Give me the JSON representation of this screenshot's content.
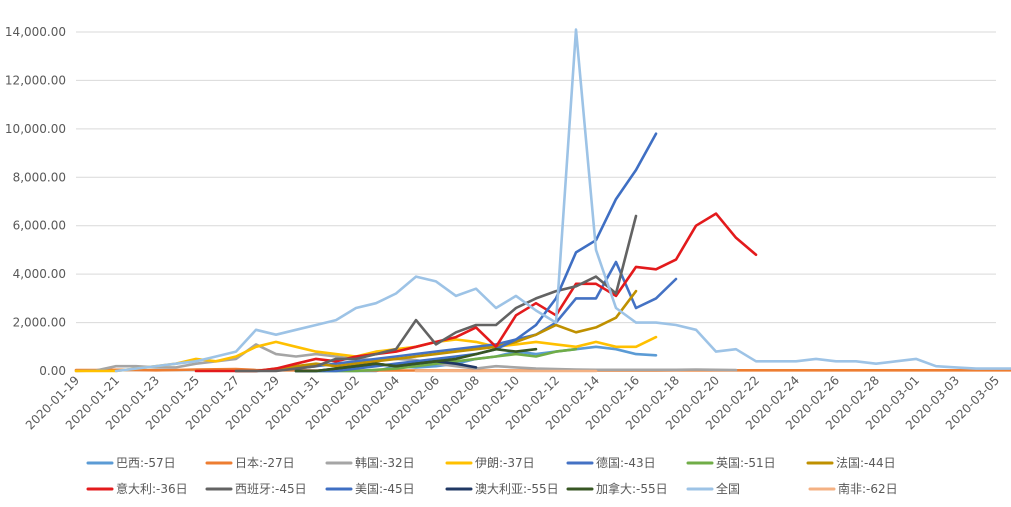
{
  "chart_data": {
    "type": "line",
    "title": "",
    "xlabel": "",
    "ylabel": "",
    "ylim": [
      0,
      14000
    ],
    "y_ticks": [
      0,
      2000,
      4000,
      6000,
      8000,
      10000,
      12000,
      14000
    ],
    "y_tick_labels": [
      "0.00",
      "2,000.00",
      "4,000.00",
      "6,000.00",
      "8,000.00",
      "10,000.00",
      "12,000.00",
      "14,000.00"
    ],
    "x_labels": [
      "2020-01-19",
      "2020-01-21",
      "2020-01-23",
      "2020-01-25",
      "2020-01-27",
      "2020-01-29",
      "2020-01-31",
      "2020-02-02",
      "2020-02-04",
      "2020-02-06",
      "2020-02-08",
      "2020-02-10",
      "2020-02-12",
      "2020-02-14",
      "2020-02-16",
      "2020-02-18",
      "2020-02-20",
      "2020-02-22",
      "2020-02-24",
      "2020-02-26",
      "2020-02-28",
      "2020-03-01",
      "2020-03-03",
      "2020-03-05"
    ],
    "n_days": 47,
    "grid": "horizontal",
    "legend_position": "bottom",
    "series": [
      {
        "name": "巴西:-57日",
        "color": "#5B9BD5",
        "values": [
          0,
          0,
          0,
          0,
          0,
          200,
          150,
          200,
          300,
          500,
          600,
          800,
          700,
          800,
          900,
          1000,
          900,
          700,
          650
        ]
      },
      {
        "name": "日本:-27日",
        "color": "#ED7D31",
        "values": [
          40,
          40,
          50,
          40,
          30,
          40,
          60,
          70,
          80,
          40,
          30,
          30,
          20,
          20,
          20,
          20,
          20,
          20,
          20,
          20,
          20,
          20,
          20,
          20,
          20,
          20,
          20,
          20,
          20,
          20,
          30,
          30,
          30,
          30,
          30,
          30,
          30,
          30,
          30,
          30,
          30,
          30,
          30,
          30,
          30,
          30,
          30,
          30,
          30,
          30,
          30,
          30,
          40,
          40,
          40,
          40,
          40,
          40,
          30,
          30,
          30,
          30,
          20,
          20,
          20,
          20,
          20
        ]
      },
      {
        "name": "韩国:-32日",
        "color": "#A5A5A5",
        "values": [
          0,
          20,
          200,
          200,
          150,
          150,
          300,
          400,
          500,
          1100,
          700,
          600,
          700,
          600,
          500,
          450,
          500,
          450,
          300,
          200,
          100,
          200,
          150,
          100,
          80,
          60,
          50,
          50,
          50,
          50,
          50,
          60,
          50,
          40
        ]
      },
      {
        "name": "伊朗:-37日",
        "color": "#FFC000",
        "values": [
          0,
          0,
          0,
          100,
          200,
          300,
          500,
          400,
          600,
          1000,
          1200,
          1000,
          800,
          700,
          600,
          800,
          900,
          1000,
          1200,
          1300,
          1200,
          1000,
          1100,
          1200,
          1100,
          1000,
          1200,
          1000,
          1000,
          1400
        ]
      },
      {
        "name": "德国:-43日",
        "color": "#4472C4",
        "values": [
          0,
          0,
          50,
          100,
          200,
          300,
          400,
          500,
          600,
          700,
          800,
          900,
          1000,
          1100,
          1300,
          1500,
          2000,
          3000,
          3000,
          4500,
          2600,
          3000,
          3800
        ]
      },
      {
        "name": "英国:-51日",
        "color": "#70AD47",
        "values": [
          0,
          0,
          0,
          0,
          50,
          100,
          200,
          300,
          400,
          500,
          600,
          700,
          600,
          800,
          900
        ]
      },
      {
        "name": "法国:-44日",
        "color": "#BF9000",
        "values": [
          0,
          0,
          100,
          200,
          300,
          200,
          300,
          400,
          500,
          600,
          700,
          800,
          900,
          1000,
          1200,
          1500,
          1900,
          1600,
          1800,
          2200,
          3300
        ]
      },
      {
        "name": "意大利:-36日",
        "color": "#E31A1C",
        "values": [
          0,
          0,
          0,
          0,
          100,
          300,
          500,
          400,
          600,
          700,
          800,
          1000,
          1200,
          1400,
          1800,
          1000,
          2300,
          2800,
          2300,
          3600,
          3600,
          3100,
          4300,
          4200,
          4600,
          6000,
          6500,
          5500,
          4800
        ]
      },
      {
        "name": "西班牙:-45日",
        "color": "#636363",
        "values": [
          0,
          0,
          0,
          100,
          200,
          500,
          500,
          700,
          900,
          2100,
          1100,
          1600,
          1900,
          1900,
          2600,
          3000,
          3300,
          3500,
          3900,
          3200,
          6400
        ]
      },
      {
        "name": "美国:-45日",
        "color": "#3F6FC3",
        "values": [
          0,
          0,
          0,
          100,
          200,
          300,
          400,
          500,
          600,
          700,
          900,
          1300,
          1900,
          3000,
          4900,
          5400,
          7100,
          8300,
          9800
        ]
      },
      {
        "name": "澳大利亚:-55日",
        "color": "#203864",
        "values": [
          0,
          0,
          100,
          200,
          300,
          200,
          300,
          400,
          300,
          150
        ]
      },
      {
        "name": "加拿大:-55日",
        "color": "#375623",
        "values": [
          0,
          0,
          100,
          200,
          300,
          200,
          300,
          400,
          500,
          700,
          900,
          800,
          900
        ]
      },
      {
        "name": "全国",
        "color": "#9DC3E6",
        "values": [
          0,
          100,
          200,
          300,
          400,
          600,
          800,
          1700,
          1500,
          1700,
          1900,
          2100,
          2600,
          2800,
          3200,
          3900,
          3700,
          3100,
          3400,
          2600,
          3100,
          2500,
          2000,
          14100,
          5000,
          2600,
          2000,
          2000,
          1900,
          1700,
          800,
          900,
          400,
          400,
          400,
          500,
          400,
          400,
          300,
          400,
          500,
          200,
          150,
          100,
          100,
          100
        ]
      },
      {
        "name": "南非:-62日",
        "color": "#F4B183",
        "values": [
          0,
          0,
          0,
          0,
          0,
          0,
          0,
          0,
          0,
          0
        ]
      }
    ],
    "offsets": [
      11,
      0,
      0,
      0,
      8,
      11,
      8,
      6,
      8,
      11,
      11,
      11,
      2,
      17
    ]
  }
}
